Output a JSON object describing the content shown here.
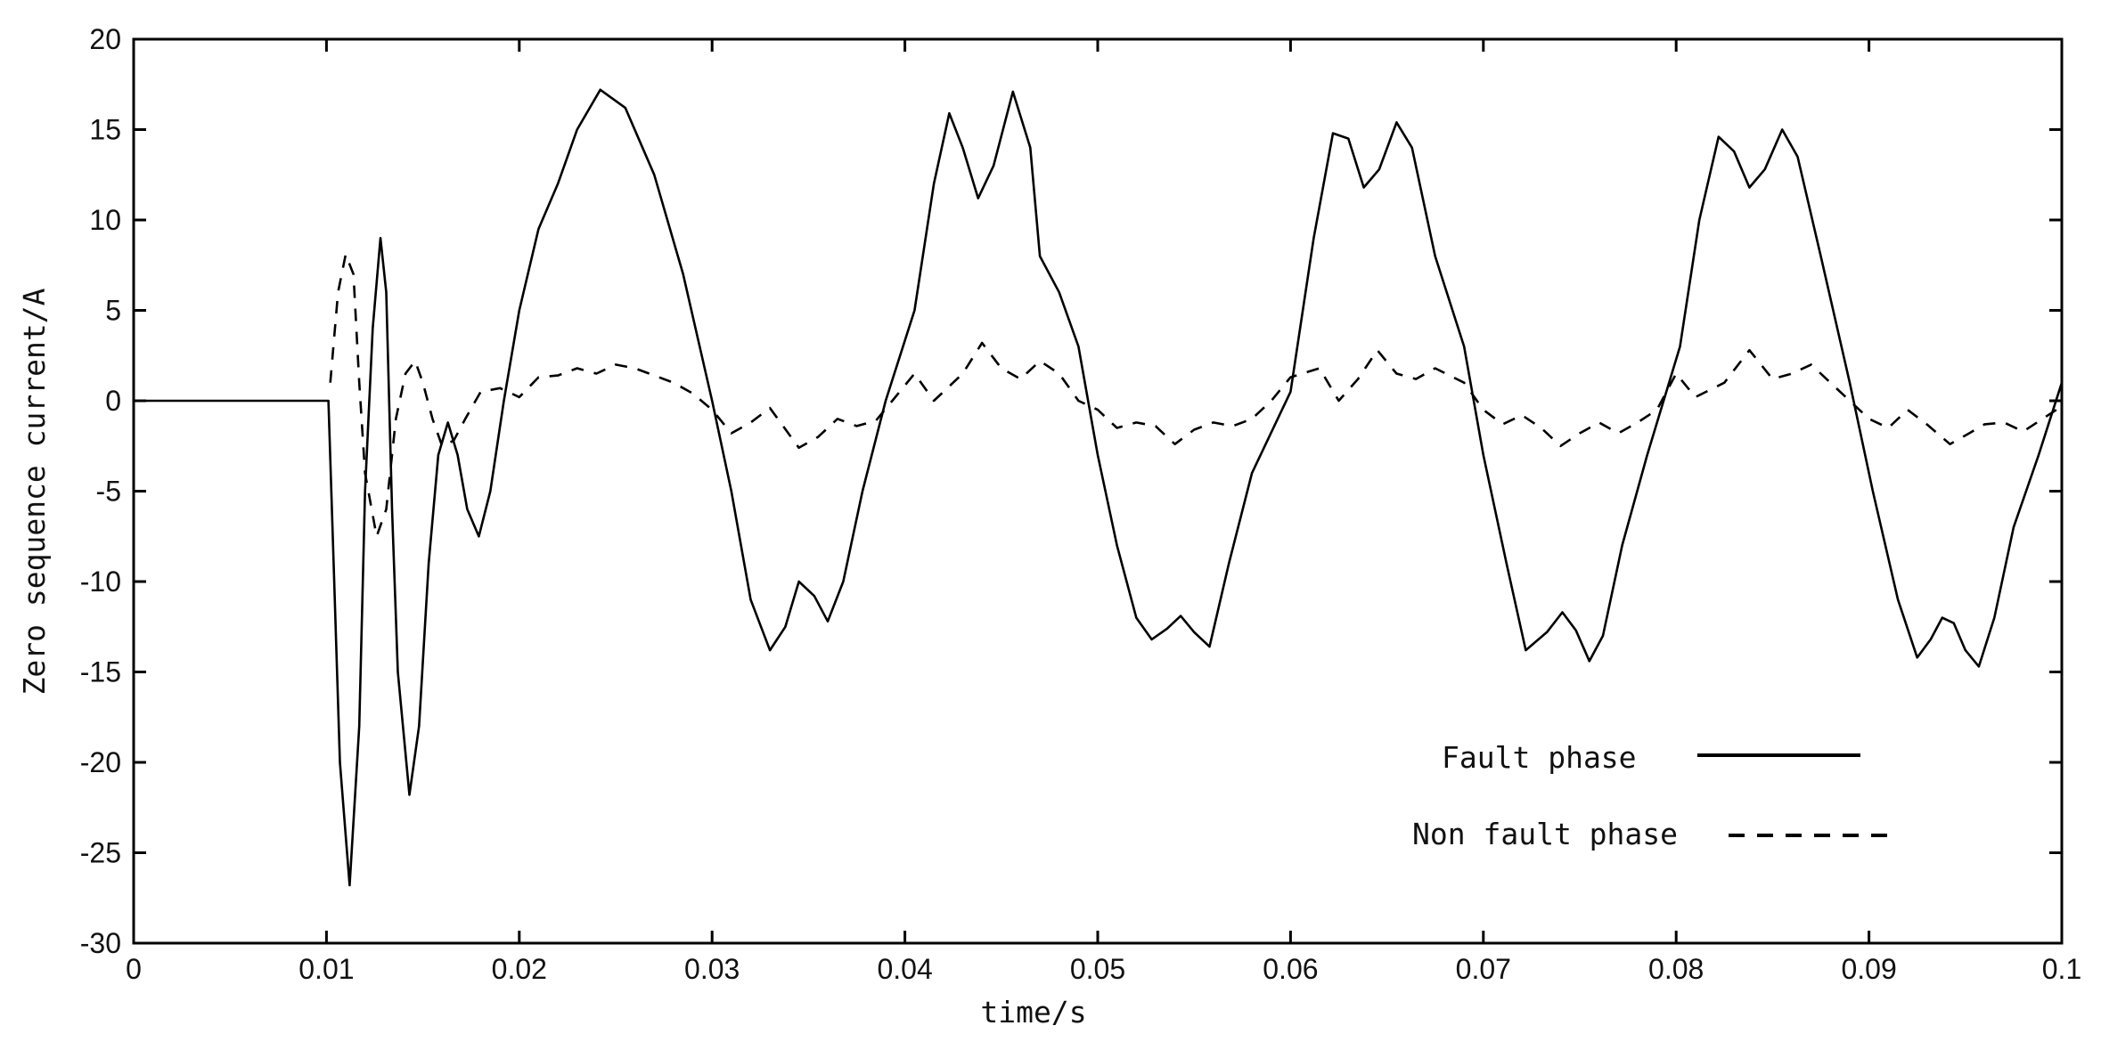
{
  "chart_data": {
    "type": "line",
    "title": "",
    "xlabel": "time/s",
    "ylabel": "Zero sequence current/A",
    "xlim": [
      0,
      0.1
    ],
    "ylim": [
      -30,
      20
    ],
    "xticks": [
      "0",
      "0.01",
      "0.02",
      "0.03",
      "0.04",
      "0.05",
      "0.06",
      "0.07",
      "0.08",
      "0.09",
      "0.1"
    ],
    "yticks": [
      "20",
      "15",
      "10",
      "5",
      "0",
      "-5",
      "-10",
      "-15",
      "-20",
      "-25",
      "-30"
    ],
    "grid": false,
    "legend_position": "bottom-right",
    "series": [
      {
        "name": "Fault phase",
        "style": "solid",
        "color": "#000000",
        "points": [
          [
            0,
            0
          ],
          [
            0.0101,
            0
          ],
          [
            0.0104,
            -10
          ],
          [
            0.0107,
            -20
          ],
          [
            0.0112,
            -26.8
          ],
          [
            0.0117,
            -18
          ],
          [
            0.012,
            -5
          ],
          [
            0.0124,
            4
          ],
          [
            0.0128,
            9
          ],
          [
            0.0131,
            6
          ],
          [
            0.0134,
            -6
          ],
          [
            0.0137,
            -15
          ],
          [
            0.0143,
            -21.8
          ],
          [
            0.0148,
            -18
          ],
          [
            0.0153,
            -9
          ],
          [
            0.0158,
            -3
          ],
          [
            0.0163,
            -1.2
          ],
          [
            0.0168,
            -3
          ],
          [
            0.0173,
            -6
          ],
          [
            0.0179,
            -7.5
          ],
          [
            0.0185,
            -5
          ],
          [
            0.0192,
            0
          ],
          [
            0.02,
            5
          ],
          [
            0.021,
            9.5
          ],
          [
            0.022,
            12
          ],
          [
            0.023,
            15
          ],
          [
            0.0242,
            17.2
          ],
          [
            0.0255,
            16.2
          ],
          [
            0.027,
            12.5
          ],
          [
            0.0285,
            7
          ],
          [
            0.03,
            0
          ],
          [
            0.031,
            -5
          ],
          [
            0.032,
            -11
          ],
          [
            0.033,
            -13.8
          ],
          [
            0.0338,
            -12.5
          ],
          [
            0.0345,
            -10
          ],
          [
            0.0353,
            -10.8
          ],
          [
            0.036,
            -12.2
          ],
          [
            0.0368,
            -10
          ],
          [
            0.0378,
            -5
          ],
          [
            0.039,
            0
          ],
          [
            0.0405,
            5
          ],
          [
            0.0415,
            12
          ],
          [
            0.0423,
            15.9
          ],
          [
            0.043,
            14
          ],
          [
            0.0438,
            11.2
          ],
          [
            0.0446,
            13
          ],
          [
            0.0456,
            17.1
          ],
          [
            0.0465,
            14
          ],
          [
            0.047,
            8
          ],
          [
            0.048,
            6
          ],
          [
            0.049,
            3
          ],
          [
            0.05,
            -3
          ],
          [
            0.051,
            -8
          ],
          [
            0.052,
            -12
          ],
          [
            0.0528,
            -13.2
          ],
          [
            0.0536,
            -12.6
          ],
          [
            0.0543,
            -11.9
          ],
          [
            0.055,
            -12.8
          ],
          [
            0.0558,
            -13.6
          ],
          [
            0.0568,
            -9
          ],
          [
            0.058,
            -4
          ],
          [
            0.06,
            0.5
          ],
          [
            0.0612,
            9
          ],
          [
            0.0622,
            14.8
          ],
          [
            0.063,
            14.5
          ],
          [
            0.0638,
            11.8
          ],
          [
            0.0646,
            12.8
          ],
          [
            0.0655,
            15.4
          ],
          [
            0.0663,
            14
          ],
          [
            0.0675,
            8
          ],
          [
            0.069,
            3
          ],
          [
            0.07,
            -3
          ],
          [
            0.0712,
            -9
          ],
          [
            0.0722,
            -13.8
          ],
          [
            0.0733,
            -12.8
          ],
          [
            0.0741,
            -11.7
          ],
          [
            0.0748,
            -12.7
          ],
          [
            0.0755,
            -14.4
          ],
          [
            0.0762,
            -13
          ],
          [
            0.0772,
            -8
          ],
          [
            0.0785,
            -3
          ],
          [
            0.0802,
            3
          ],
          [
            0.0812,
            10
          ],
          [
            0.0822,
            14.6
          ],
          [
            0.083,
            13.8
          ],
          [
            0.0838,
            11.8
          ],
          [
            0.0846,
            12.8
          ],
          [
            0.0855,
            15
          ],
          [
            0.0863,
            13.5
          ],
          [
            0.0875,
            8
          ],
          [
            0.089,
            1
          ],
          [
            0.0902,
            -5
          ],
          [
            0.0915,
            -11
          ],
          [
            0.0925,
            -14.2
          ],
          [
            0.0932,
            -13.2
          ],
          [
            0.0938,
            -12
          ],
          [
            0.0944,
            -12.3
          ],
          [
            0.095,
            -13.8
          ],
          [
            0.0957,
            -14.7
          ],
          [
            0.0965,
            -12
          ],
          [
            0.0975,
            -7
          ],
          [
            0.0988,
            -3
          ],
          [
            0.1,
            1
          ]
        ]
      },
      {
        "name": "Non fault phase",
        "style": "dashed",
        "color": "#000000",
        "points": [
          [
            0.0102,
            1
          ],
          [
            0.0106,
            6
          ],
          [
            0.011,
            8.1
          ],
          [
            0.0114,
            7
          ],
          [
            0.0117,
            1
          ],
          [
            0.012,
            -4
          ],
          [
            0.0126,
            -7.5
          ],
          [
            0.0131,
            -6
          ],
          [
            0.0136,
            -1
          ],
          [
            0.0141,
            1.5
          ],
          [
            0.0146,
            2.2
          ],
          [
            0.015,
            1
          ],
          [
            0.0155,
            -1
          ],
          [
            0.016,
            -2.5
          ],
          [
            0.0166,
            -2.2
          ],
          [
            0.0172,
            -1
          ],
          [
            0.018,
            0.5
          ],
          [
            0.019,
            0.7
          ],
          [
            0.02,
            0.2
          ],
          [
            0.021,
            1.3
          ],
          [
            0.022,
            1.4
          ],
          [
            0.023,
            1.8
          ],
          [
            0.024,
            1.5
          ],
          [
            0.025,
            2
          ],
          [
            0.026,
            1.8
          ],
          [
            0.027,
            1.4
          ],
          [
            0.028,
            1
          ],
          [
            0.029,
            0.4
          ],
          [
            0.03,
            -0.5
          ],
          [
            0.031,
            -1.8
          ],
          [
            0.032,
            -1.2
          ],
          [
            0.033,
            -0.4
          ],
          [
            0.0345,
            -2.6
          ],
          [
            0.0355,
            -2
          ],
          [
            0.0365,
            -1
          ],
          [
            0.0375,
            -1.4
          ],
          [
            0.0385,
            -1.1
          ],
          [
            0.0395,
            0.2
          ],
          [
            0.0405,
            1.5
          ],
          [
            0.0415,
            0
          ],
          [
            0.043,
            1.5
          ],
          [
            0.044,
            3.2
          ],
          [
            0.045,
            1.8
          ],
          [
            0.046,
            1.2
          ],
          [
            0.047,
            2.2
          ],
          [
            0.048,
            1.5
          ],
          [
            0.049,
            0
          ],
          [
            0.05,
            -0.5
          ],
          [
            0.051,
            -1.5
          ],
          [
            0.052,
            -1.2
          ],
          [
            0.053,
            -1.4
          ],
          [
            0.054,
            -2.4
          ],
          [
            0.055,
            -1.6
          ],
          [
            0.056,
            -1.2
          ],
          [
            0.057,
            -1.4
          ],
          [
            0.058,
            -1
          ],
          [
            0.059,
            0
          ],
          [
            0.06,
            1.3
          ],
          [
            0.0615,
            1.8
          ],
          [
            0.0625,
            0
          ],
          [
            0.0635,
            1.2
          ],
          [
            0.0645,
            2.8
          ],
          [
            0.0655,
            1.5
          ],
          [
            0.0665,
            1.2
          ],
          [
            0.0675,
            1.8
          ],
          [
            0.069,
            1
          ],
          [
            0.07,
            -0.5
          ],
          [
            0.071,
            -1.3
          ],
          [
            0.072,
            -0.8
          ],
          [
            0.073,
            -1.5
          ],
          [
            0.074,
            -2.5
          ],
          [
            0.075,
            -1.8
          ],
          [
            0.076,
            -1.2
          ],
          [
            0.077,
            -1.8
          ],
          [
            0.078,
            -1.2
          ],
          [
            0.079,
            -0.5
          ],
          [
            0.08,
            1.5
          ],
          [
            0.081,
            0.2
          ],
          [
            0.0825,
            1
          ],
          [
            0.0838,
            2.8
          ],
          [
            0.085,
            1.2
          ],
          [
            0.086,
            1.5
          ],
          [
            0.087,
            2
          ],
          [
            0.088,
            1
          ],
          [
            0.089,
            0
          ],
          [
            0.09,
            -1
          ],
          [
            0.091,
            -1.5
          ],
          [
            0.092,
            -0.5
          ],
          [
            0.093,
            -1.3
          ],
          [
            0.0942,
            -2.4
          ],
          [
            0.0952,
            -1.8
          ],
          [
            0.096,
            -1.3
          ],
          [
            0.097,
            -1.2
          ],
          [
            0.098,
            -1.7
          ],
          [
            0.099,
            -1
          ],
          [
            0.1,
            -0.3
          ]
        ]
      }
    ]
  }
}
